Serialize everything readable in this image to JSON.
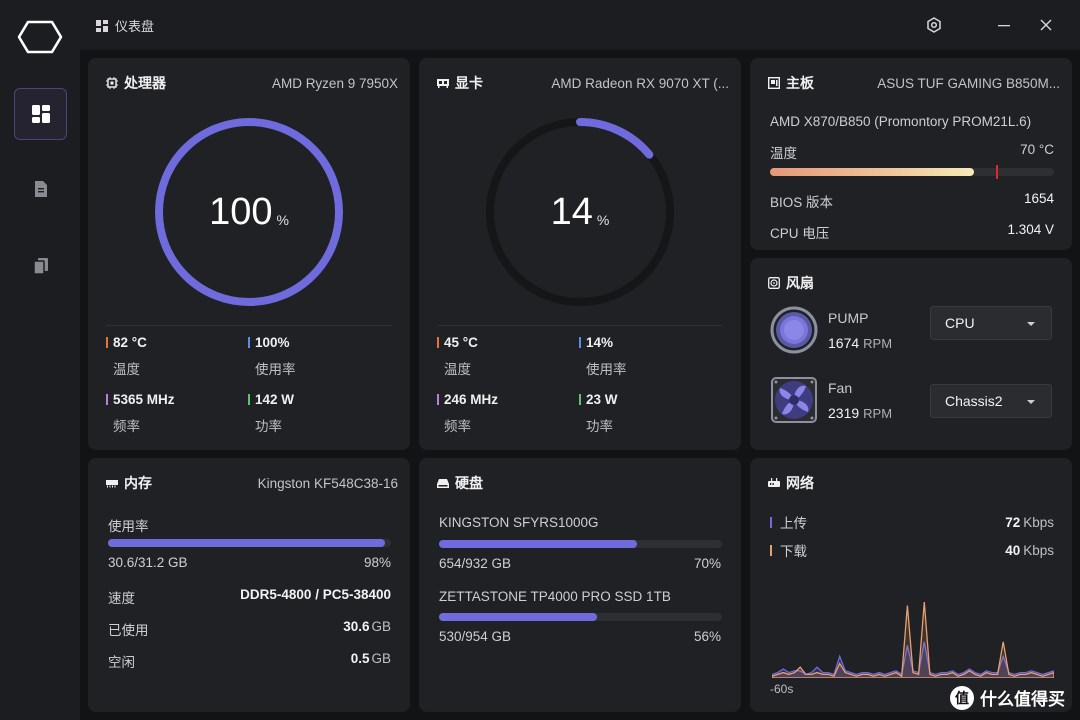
{
  "app": {
    "title": "仪表盘"
  },
  "sidebar": {
    "items": [
      {
        "name": "dashboard",
        "icon": "dashboard-icon",
        "active": true
      },
      {
        "name": "document",
        "icon": "document-icon",
        "active": false
      },
      {
        "name": "copy",
        "icon": "copy-icon",
        "active": false
      }
    ]
  },
  "colors": {
    "accent": "#6f6bdc",
    "temp": "#e8703a",
    "usage": "#5b8de8",
    "freq": "#c27be0",
    "power": "#5cc46a",
    "upload": "#6f6bdc",
    "download": "#e8a070"
  },
  "cpu": {
    "title": "处理器",
    "model": "AMD Ryzen 9 7950X",
    "usage_value": "100",
    "usage_unit": "%",
    "usage_fraction": 1.0,
    "temp": "82 °C",
    "temp_label": "温度",
    "usage": "100%",
    "usage_label": "使用率",
    "freq": "5365 MHz",
    "freq_label": "频率",
    "power": "142 W",
    "power_label": "功率"
  },
  "gpu": {
    "title": "显卡",
    "model": "AMD Radeon RX 9070 XT (...",
    "usage_value": "14",
    "usage_unit": "%",
    "usage_fraction": 0.14,
    "temp": "45 °C",
    "temp_label": "温度",
    "usage": "14%",
    "usage_label": "使用率",
    "freq": "246 MHz",
    "freq_label": "频率",
    "power": "23 W",
    "power_label": "功率"
  },
  "motherboard": {
    "title": "主板",
    "model": "ASUS TUF GAMING B850M...",
    "chipset": "AMD X870/B850 (Promontory PROM21L.6)",
    "temp_label": "温度",
    "temp_value": "70 °C",
    "temp_fraction": 0.72,
    "bios_label": "BIOS 版本",
    "bios_value": "1654",
    "cpu_voltage_label": "CPU 电压",
    "cpu_voltage_value": "1.304 V"
  },
  "fans": {
    "title": "风扇",
    "items": [
      {
        "name": "PUMP",
        "rpm": "1674",
        "unit": "RPM",
        "select": "CPU",
        "icon": "pump-icon"
      },
      {
        "name": "Fan",
        "rpm": "2319",
        "unit": "RPM",
        "select": "Chassis2",
        "icon": "fan-icon"
      }
    ]
  },
  "memory": {
    "title": "内存",
    "model": "Kingston KF548C38-16",
    "usage_label": "使用率",
    "usage_fraction": 0.98,
    "usage_detail": "30.6/31.2 GB",
    "usage_percent": "98%",
    "speed_label": "速度",
    "speed_value": "DDR5-4800 / PC5-38400",
    "used_label": "已使用",
    "used_value": "30.6",
    "used_unit": "GB",
    "free_label": "空闲",
    "free_value": "0.5",
    "free_unit": "GB"
  },
  "disk": {
    "title": "硬盘",
    "drives": [
      {
        "name": "KINGSTON SFYRS1000G",
        "usage_fraction": 0.7,
        "detail": "654/932 GB",
        "percent": "70%"
      },
      {
        "name": "ZETTASTONE TP4000 PRO SSD 1TB",
        "usage_fraction": 0.56,
        "detail": "530/954 GB",
        "percent": "56%"
      }
    ]
  },
  "network": {
    "title": "网络",
    "upload_label": "上传",
    "upload_value": "72",
    "upload_unit": "Kbps",
    "download_label": "下载",
    "download_value": "40",
    "download_unit": "Kbps",
    "axis_label": "-60s",
    "upload_series": [
      2,
      3,
      5,
      3,
      4,
      4,
      2,
      3,
      6,
      3,
      3,
      2,
      12,
      4,
      3,
      2,
      3,
      3,
      2,
      3,
      2,
      3,
      4,
      2,
      18,
      4,
      3,
      20,
      3,
      2,
      3,
      3,
      4,
      2,
      3,
      5,
      3,
      2,
      4,
      3,
      3,
      12,
      3,
      2,
      3,
      3,
      4,
      3,
      2,
      3,
      4
    ],
    "download_series": [
      1,
      2,
      3,
      2,
      3,
      6,
      2,
      2,
      3,
      2,
      2,
      1,
      8,
      3,
      2,
      1,
      2,
      2,
      1,
      2,
      1,
      2,
      3,
      1,
      40,
      3,
      2,
      42,
      2,
      1,
      2,
      2,
      3,
      1,
      2,
      4,
      2,
      1,
      3,
      2,
      2,
      20,
      2,
      1,
      2,
      2,
      3,
      2,
      1,
      2,
      3
    ]
  },
  "watermark": {
    "logo": "值",
    "text": "什么值得买"
  }
}
